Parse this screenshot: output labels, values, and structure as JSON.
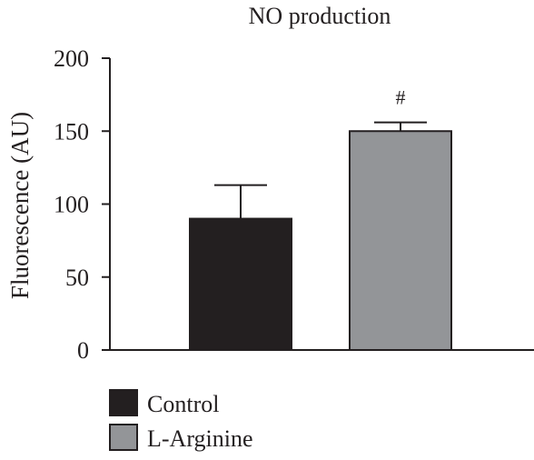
{
  "chart_data": {
    "type": "bar",
    "title": "NO production",
    "xlabel": "",
    "ylabel": "Fluorescence (AU)",
    "ylim": [
      0,
      200
    ],
    "yticks": [
      0,
      50,
      100,
      150,
      200
    ],
    "categories": [
      "Control",
      "L-Arginine"
    ],
    "values": [
      90,
      150
    ],
    "errors": [
      23,
      6
    ],
    "annotations": [
      "",
      "#"
    ],
    "legend": {
      "placement": "bottom-left",
      "entries": [
        {
          "label": "Control",
          "color": "#231f20"
        },
        {
          "label": "L-Arginine",
          "color": "#939598"
        }
      ]
    }
  }
}
